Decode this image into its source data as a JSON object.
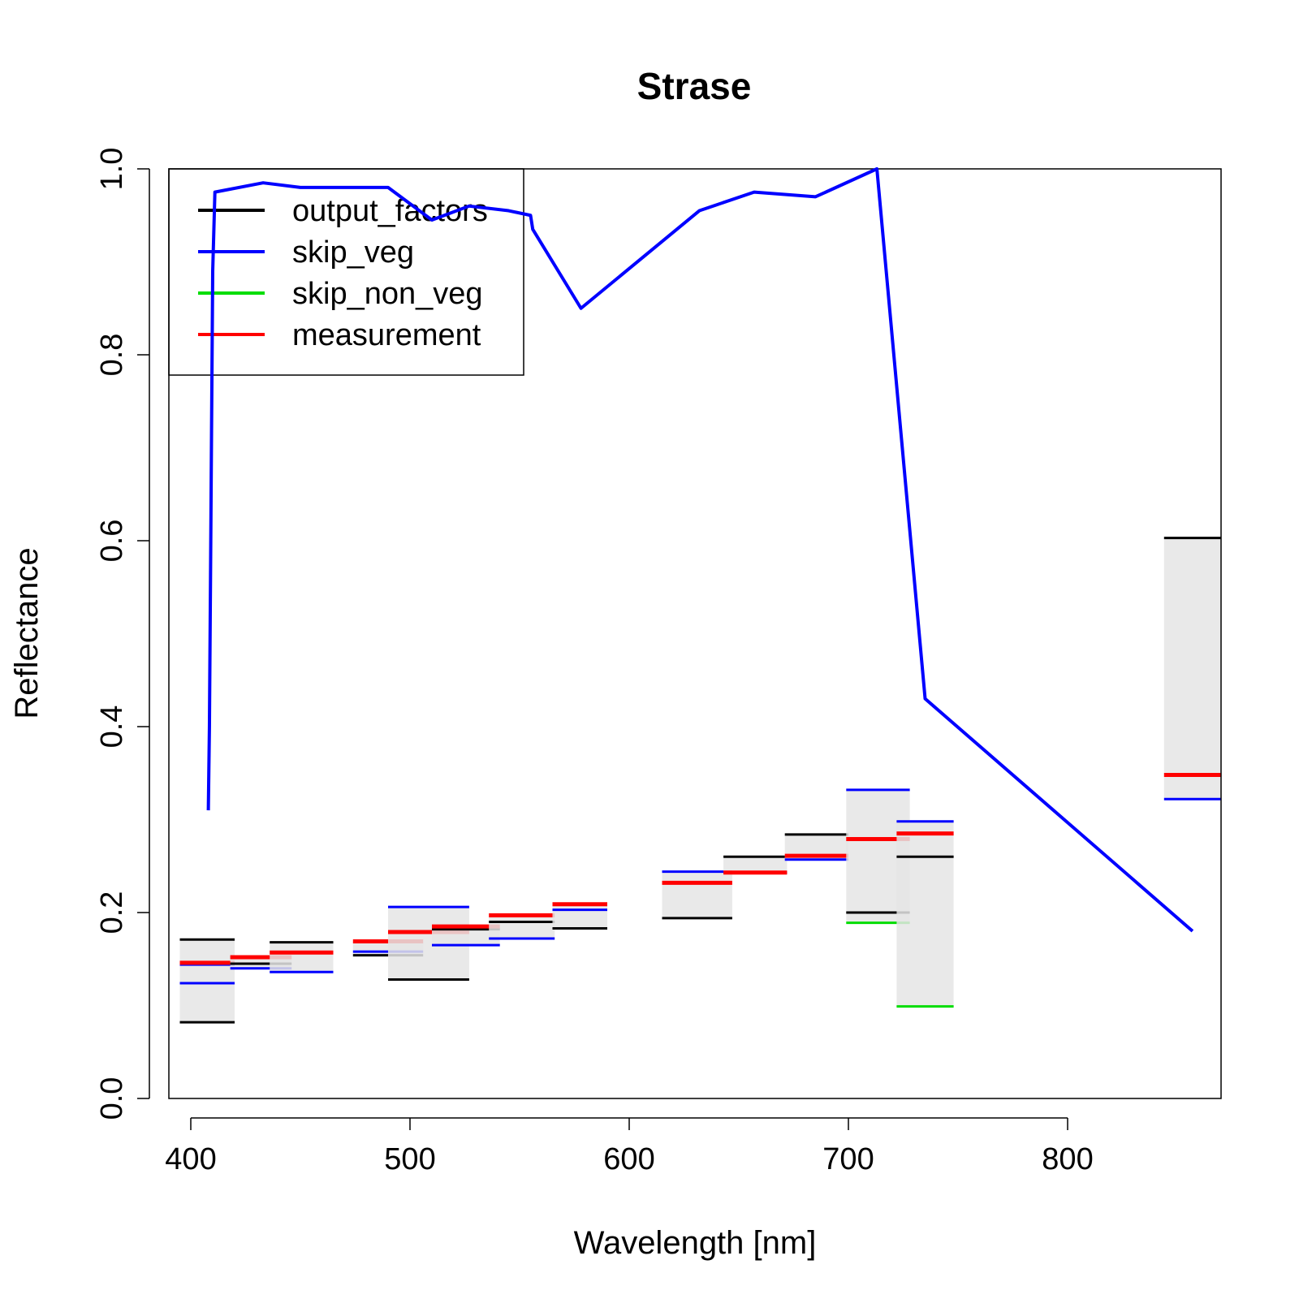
{
  "chart_data": {
    "type": "line",
    "title": "Strase",
    "xlabel": "Wavelength [nm]",
    "ylabel": "Reflectance",
    "xlim": [
      390,
      870
    ],
    "ylim": [
      0,
      1
    ],
    "x_ticks": [
      "400",
      "500",
      "600",
      "700",
      "800"
    ],
    "x_tick_values": [
      400,
      500,
      600,
      700,
      800
    ],
    "y_ticks": [
      "0.0",
      "0.2",
      "0.4",
      "0.6",
      "0.8",
      "1.0"
    ],
    "y_tick_values": [
      0,
      0.2,
      0.4,
      0.6,
      0.8,
      1.0
    ],
    "grid": false,
    "legend": {
      "position": "top-left",
      "items": [
        {
          "label": "output_factors",
          "color": "#000000"
        },
        {
          "label": "skip_veg",
          "color": "#0000FF"
        },
        {
          "label": "skip_non_veg",
          "color": "#00DD00"
        },
        {
          "label": "measurement",
          "color": "#FF0000"
        }
      ]
    },
    "colors": {
      "output_factors": "#000000",
      "skip_veg": "#0000FF",
      "skip_non_veg": "#00DD00",
      "measurement": "#FF0000",
      "band_fill": "#e5e5e5",
      "band_overlap_fill": "#cccccc"
    },
    "skip_veg_curve": {
      "name": "skip_veg",
      "points": [
        [
          408,
          0.31
        ],
        [
          408.5,
          0.4
        ],
        [
          409,
          0.56
        ],
        [
          409.5,
          0.73
        ],
        [
          410,
          0.89
        ],
        [
          411,
          0.975
        ],
        [
          433,
          0.985
        ],
        [
          450,
          0.98
        ],
        [
          470,
          0.98
        ],
        [
          490,
          0.98
        ],
        [
          510,
          0.945
        ],
        [
          527,
          0.96
        ],
        [
          545,
          0.955
        ],
        [
          555,
          0.95
        ],
        [
          556,
          0.935
        ],
        [
          578,
          0.85
        ],
        [
          632,
          0.955
        ],
        [
          657,
          0.975
        ],
        [
          685,
          0.97
        ],
        [
          713,
          1.0
        ],
        [
          735,
          0.43
        ],
        [
          857,
          0.18
        ]
      ]
    },
    "bands": [
      {
        "x_range": [
          395,
          420
        ],
        "output_factors": [
          0.171,
          0.082
        ],
        "skip_veg": [
          0.144,
          0.124
        ],
        "skip_non_veg": [],
        "measurement": 0.146
      },
      {
        "x_range": [
          418,
          446
        ],
        "output_factors": [
          0.145
        ],
        "skip_veg": [
          0.14
        ],
        "skip_non_veg": [],
        "measurement": 0.152
      },
      {
        "x_range": [
          436,
          465
        ],
        "output_factors": [
          0.168
        ],
        "skip_veg": [
          0.136
        ],
        "skip_non_veg": [],
        "measurement": 0.157
      },
      {
        "x_range": [
          474,
          506
        ],
        "output_factors": [
          0.154
        ],
        "skip_veg": [
          0.158
        ],
        "skip_non_veg": [],
        "measurement": 0.169
      },
      {
        "x_range": [
          490,
          527
        ],
        "output_factors": [
          0.128
        ],
        "skip_veg": [
          0.206
        ],
        "skip_non_veg": [],
        "measurement": 0.179
      },
      {
        "x_range": [
          510,
          541
        ],
        "output_factors": [
          0.182
        ],
        "skip_veg": [
          0.165
        ],
        "skip_non_veg": [],
        "measurement": 0.185
      },
      {
        "x_range": [
          536,
          566
        ],
        "output_factors": [
          0.19
        ],
        "skip_veg": [
          0.172
        ],
        "skip_non_veg": [],
        "measurement": 0.197
      },
      {
        "x_range": [
          565,
          590
        ],
        "output_factors": [
          0.183
        ],
        "skip_veg": [
          0.203
        ],
        "skip_non_veg": [],
        "measurement": 0.209
      },
      {
        "x_range": [
          615,
          647
        ],
        "output_factors": [
          0.194
        ],
        "skip_veg": [
          0.244
        ],
        "skip_non_veg": [],
        "measurement": 0.232
      },
      {
        "x_range": [
          643,
          672
        ],
        "output_factors": [
          0.26
        ],
        "skip_veg": [
          0.243
        ],
        "skip_non_veg": [],
        "measurement": 0.243
      },
      {
        "x_range": [
          671,
          700
        ],
        "output_factors": [
          0.284
        ],
        "skip_veg": [
          0.257
        ],
        "skip_non_veg": [],
        "measurement": 0.261
      },
      {
        "x_range": [
          699,
          728
        ],
        "output_factors": [
          0.2
        ],
        "skip_veg": [
          0.332
        ],
        "skip_non_veg": [
          0.189
        ],
        "measurement": 0.279
      },
      {
        "x_range": [
          722,
          748
        ],
        "output_factors": [
          0.26
        ],
        "skip_veg": [
          0.298
        ],
        "skip_non_veg": [
          0.099
        ],
        "measurement": 0.285
      },
      {
        "x_range": [
          844,
          870
        ],
        "output_factors": [
          0.603
        ],
        "skip_veg": [
          0.322
        ],
        "skip_non_veg": [],
        "measurement": 0.348
      }
    ]
  }
}
